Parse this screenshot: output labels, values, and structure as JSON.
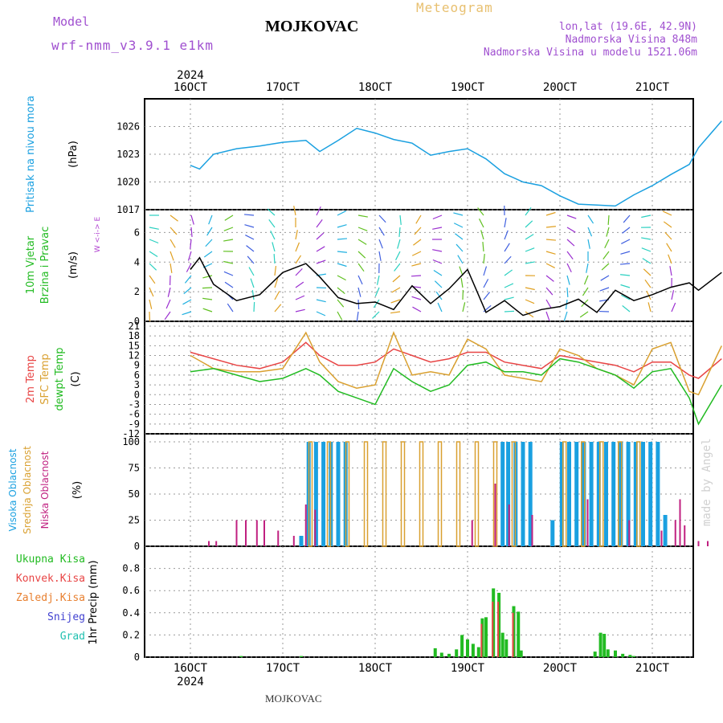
{
  "header": {
    "model_label": "Model",
    "model_name": "wrf-nmm_v3.9.1 e1km",
    "station": "MOJKOVAC",
    "meteogram": "Meteogram",
    "lonlat": "lon,lat (19.6E, 42.9N)",
    "altitude": "Nadmorska Visina 848m",
    "model_altitude": "Nadmorska Visina u modelu 1521.06m",
    "footer_station": "MOJKOVAC",
    "watermark": "made by Angel"
  },
  "colors": {
    "pressure": "#1aa0e0",
    "wind_title": "#22bb22",
    "purple": "#b040d0",
    "temp2m": "#e84545",
    "sfc": "#d9a030",
    "dewpt": "#22bb22",
    "high_cloud": "#1aa0e0",
    "mid_cloud": "#d9a030",
    "low_cloud": "#c02080",
    "precip_total": "#22bb22",
    "precip_conv": "#e84545",
    "precip_frozen": "#e88030",
    "precip_snow": "#4040d0",
    "precip_hail": "#20c0b0"
  },
  "axes": {
    "date_labels": [
      "16OCT",
      "17OCT",
      "18OCT",
      "19OCT",
      "20OCT",
      "21OCT"
    ],
    "year": "2024"
  },
  "chart_data": [
    {
      "type": "line",
      "panel": "pressure",
      "ylabel_title": "Pritisak na nivou mora",
      "ylabel_unit": "(hPa)",
      "ylim": [
        1017,
        1029
      ],
      "yticks": [
        "1017",
        "1020",
        "1023",
        "1026"
      ],
      "grid": true,
      "x_days": [
        0,
        0.1,
        0.25,
        0.5,
        0.75,
        1.0,
        1.25,
        1.4,
        1.6,
        1.8,
        2.0,
        2.2,
        2.4,
        2.6,
        2.8,
        3.0,
        3.2,
        3.4,
        3.6,
        3.8,
        4.0,
        4.2,
        4.4,
        4.6,
        4.8,
        5.0,
        5.2,
        5.4,
        5.5,
        5.75
      ],
      "series": [
        {
          "values": [
            1021.8,
            1021.4,
            1023.0,
            1023.6,
            1023.9,
            1024.3,
            1024.5,
            1023.3,
            1024.5,
            1025.8,
            1025.3,
            1024.6,
            1024.2,
            1022.9,
            1023.3,
            1023.6,
            1022.5,
            1020.9,
            1020.0,
            1019.6,
            1018.5,
            1017.6,
            1017.5,
            1017.4,
            1018.6,
            1019.6,
            1020.8,
            1021.9,
            1023.7,
            1026.6
          ]
        }
      ]
    },
    {
      "type": "line",
      "panel": "wind",
      "ylabel_title": "10m Vjetar",
      "ylabel_title2": "Brzina i Pravac",
      "ylabel_unit": "(m/s)",
      "compass": "W <-i-> E",
      "ylim": [
        0,
        7
      ],
      "yticks": [
        "0",
        "2",
        "4",
        "6"
      ],
      "grid": true,
      "x_days": [
        0,
        0.1,
        0.25,
        0.5,
        0.75,
        1.0,
        1.25,
        1.4,
        1.6,
        1.8,
        2.0,
        2.2,
        2.4,
        2.6,
        2.8,
        3.0,
        3.2,
        3.4,
        3.6,
        3.8,
        4.0,
        4.2,
        4.4,
        4.6,
        4.8,
        5.0,
        5.2,
        5.4,
        5.5,
        5.75
      ],
      "series": [
        {
          "values": [
            3.5,
            4.3,
            2.5,
            1.4,
            1.8,
            3.3,
            3.9,
            3.0,
            1.6,
            1.2,
            1.3,
            0.8,
            2.4,
            1.2,
            2.2,
            3.5,
            0.6,
            1.4,
            0.4,
            0.8,
            1.0,
            1.5,
            0.6,
            2.1,
            1.4,
            1.8,
            2.3,
            2.6,
            2.1,
            3.3
          ]
        }
      ]
    },
    {
      "type": "line",
      "panel": "temperature",
      "ylabel_title": "2m Temp",
      "ylabel_title2": "SFC Temp",
      "ylabel_title3": "dewpt Temp",
      "ylabel_unit": "(C)",
      "ylim": [
        -12,
        21
      ],
      "yticks": [
        "-12",
        "-9",
        "-6",
        "-3",
        "0",
        "3",
        "6",
        "9",
        "12",
        "15",
        "18",
        "21"
      ],
      "grid": true,
      "x_days": [
        0,
        0.25,
        0.5,
        0.75,
        1.0,
        1.25,
        1.4,
        1.6,
        1.8,
        2.0,
        2.2,
        2.4,
        2.6,
        2.8,
        3.0,
        3.2,
        3.4,
        3.6,
        3.8,
        4.0,
        4.2,
        4.4,
        4.6,
        4.8,
        5.0,
        5.2,
        5.4,
        5.5,
        5.75
      ],
      "series": [
        {
          "name": "2m Temp",
          "values": [
            13,
            11,
            9,
            8,
            10,
            16,
            12,
            9,
            9,
            10,
            14,
            12,
            10,
            11,
            13,
            13,
            10,
            9,
            8,
            12,
            11,
            10,
            9,
            7,
            10,
            10,
            6,
            5,
            11
          ]
        },
        {
          "name": "SFC Temp",
          "values": [
            12,
            8,
            7,
            7,
            8,
            19,
            10,
            4,
            2,
            3,
            19,
            6,
            7,
            6,
            17,
            14,
            6,
            5,
            4,
            14,
            12,
            8,
            6,
            3,
            14,
            16,
            1,
            0,
            15
          ]
        },
        {
          "name": "dewpt Temp",
          "values": [
            7,
            8,
            6,
            4,
            5,
            8,
            6,
            1,
            -1,
            -3,
            8,
            4,
            1,
            3,
            9,
            10,
            7,
            7,
            6,
            11,
            10,
            8,
            6,
            2,
            7,
            8,
            -1,
            -9,
            3
          ]
        }
      ]
    },
    {
      "type": "bar",
      "panel": "clouds",
      "ylabel_title": "Visoka Oblacnost",
      "ylabel_title2": "Srednja Oblacnost",
      "ylabel_title3": "Niska Oblacnost",
      "ylabel_unit": "(%)",
      "ylim": [
        0,
        100
      ],
      "yticks": [
        "0",
        "25",
        "50",
        "75",
        "100"
      ],
      "grid": true,
      "series": [
        {
          "name": "High",
          "x_days": [
            1.2,
            1.28,
            1.36,
            1.44,
            1.52,
            1.6,
            1.68,
            3.38,
            3.44,
            3.52,
            3.6,
            3.68,
            3.92,
            4.02,
            4.1,
            4.18,
            4.26,
            4.34,
            4.42,
            4.5,
            4.58,
            4.66,
            4.74,
            4.82,
            4.9,
            4.98,
            5.06,
            5.14
          ],
          "values": [
            10,
            100,
            100,
            100,
            100,
            100,
            100,
            100,
            100,
            100,
            100,
            100,
            25,
            100,
            100,
            100,
            100,
            100,
            100,
            100,
            100,
            100,
            100,
            100,
            100,
            100,
            100,
            30
          ]
        },
        {
          "name": "Mid",
          "x_days": [
            1.3,
            1.5,
            1.7,
            1.9,
            2.1,
            2.3,
            2.5,
            2.7,
            2.9,
            3.1,
            3.3,
            3.5,
            4.05,
            4.25,
            4.45,
            4.65,
            4.85
          ],
          "values": [
            100,
            100,
            100,
            100,
            100,
            100,
            100,
            100,
            100,
            100,
            100,
            100,
            100,
            100,
            100,
            100,
            100
          ]
        },
        {
          "name": "Low",
          "x_days": [
            0.2,
            0.28,
            0.5,
            0.6,
            0.72,
            0.8,
            0.95,
            1.12,
            1.25,
            1.35,
            3.05,
            3.3,
            3.45,
            3.7,
            4.3,
            4.75,
            5.1,
            5.25,
            5.3,
            5.35,
            5.5,
            5.6
          ],
          "values": [
            5,
            5,
            25,
            25,
            25,
            25,
            15,
            10,
            40,
            35,
            25,
            60,
            40,
            30,
            45,
            25,
            15,
            25,
            45,
            20,
            5,
            5
          ]
        }
      ]
    },
    {
      "type": "bar",
      "panel": "precip",
      "ylabel_title": "1hr Precip (mm)",
      "legend": [
        "Ukupna Kisa",
        "Konvek.Kisa",
        "Zaledj.Kisa",
        "Snijeg",
        "Grad"
      ],
      "ylim": [
        0,
        1.0
      ],
      "yticks": [
        "0",
        "0.2",
        "0.4",
        "0.6",
        "0.8"
      ],
      "grid": true,
      "series": [
        {
          "name": "Total",
          "x_days": [
            0.55,
            1.2,
            2.65,
            2.72,
            2.8,
            2.88,
            2.94,
            3.0,
            3.06,
            3.12,
            3.16,
            3.2,
            3.28,
            3.34,
            3.38,
            3.42,
            3.5,
            3.55,
            3.58,
            4.38,
            4.44,
            4.48,
            4.52,
            4.6,
            4.68,
            4.76,
            4.8
          ],
          "values": [
            0.01,
            0.01,
            0.08,
            0.04,
            0.03,
            0.07,
            0.2,
            0.16,
            0.12,
            0.09,
            0.35,
            0.36,
            0.62,
            0.58,
            0.22,
            0.16,
            0.46,
            0.41,
            0.06,
            0.05,
            0.22,
            0.21,
            0.07,
            0.06,
            0.03,
            0.02,
            0.01
          ]
        },
        {
          "name": "Convective",
          "x_days": [
            3.16,
            3.28,
            3.34,
            3.5
          ],
          "values": [
            0.3,
            0.5,
            0.5,
            0.4
          ]
        }
      ]
    }
  ]
}
